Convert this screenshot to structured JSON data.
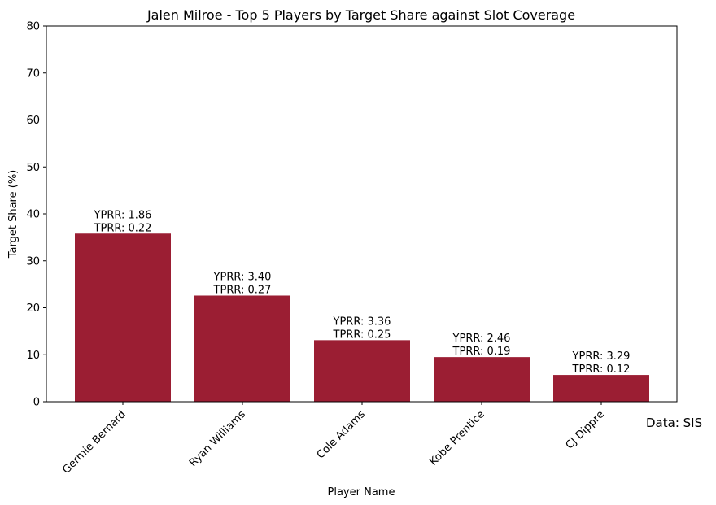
{
  "chart_data": {
    "type": "bar",
    "title": "Jalen Milroe - Top 5 Players by Target Share against Slot Coverage",
    "xlabel": "Player Name",
    "ylabel": "Target Share (%)",
    "ylim": [
      0,
      80
    ],
    "yticks": [
      0,
      10,
      20,
      30,
      40,
      50,
      60,
      70,
      80
    ],
    "grid": false,
    "categories": [
      "Germie Bernard",
      "Ryan Williams",
      "Cole Adams",
      "Kobe Prentice",
      "CJ Dippre"
    ],
    "values": [
      35.8,
      22.6,
      13.1,
      9.5,
      5.7
    ],
    "bar_labels": [
      [
        "YPRR: 1.86",
        "TPRR: 0.22"
      ],
      [
        "YPRR: 3.40",
        "TPRR: 0.27"
      ],
      [
        "YPRR: 3.36",
        "TPRR: 0.25"
      ],
      [
        "YPRR: 2.46",
        "TPRR: 0.19"
      ],
      [
        "YPRR: 3.29",
        "TPRR: 0.12"
      ]
    ],
    "bar_color": "#9b1e33",
    "source_note": "Data: SIS"
  }
}
